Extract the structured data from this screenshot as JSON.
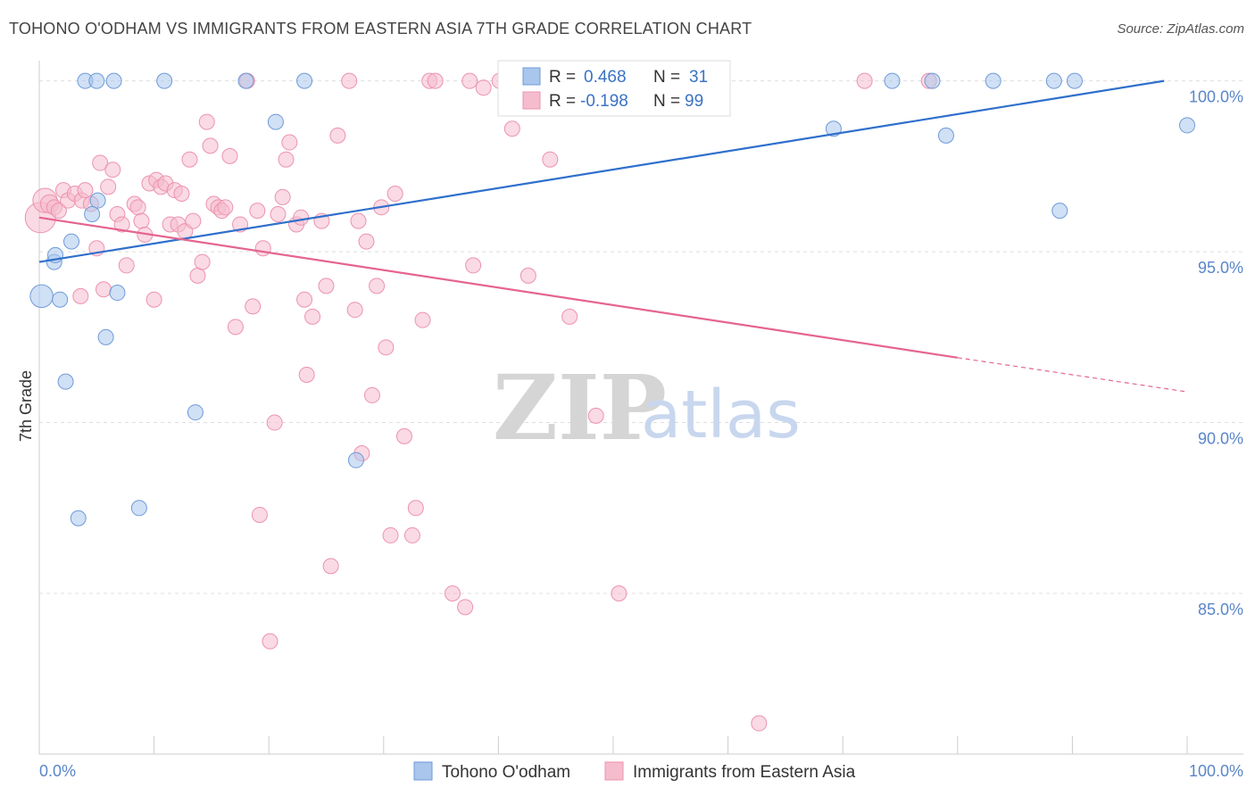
{
  "title": "TOHONO O'ODHAM VS IMMIGRANTS FROM EASTERN ASIA 7TH GRADE CORRELATION CHART",
  "source": "Source: ZipAtlas.com",
  "watermark": {
    "zip": "ZIP",
    "atlas": "atlas"
  },
  "colors": {
    "blue_fill": "#a9c6ec",
    "blue_stroke": "#6f9bd8",
    "blue_line": "#2f6fcc",
    "pink_fill": "#f5bccd",
    "pink_stroke": "#ec93af",
    "pink_line": "#e5648f",
    "grid": "#dddddd",
    "axis_text": "#5a86c9"
  },
  "legend": {
    "r_label": "R =",
    "n_label": "N =",
    "rows": [
      {
        "r": "0.468",
        "n": "31",
        "series": 0
      },
      {
        "r": "-0.198",
        "n": "99",
        "series": 1
      }
    ]
  },
  "chart_data": {
    "type": "scatter",
    "xlabel": "",
    "ylabel": "7th Grade",
    "xlim": [
      0,
      100
    ],
    "ylim": [
      80.3,
      100.8
    ],
    "x_tick_labels": [
      "0.0%",
      "100.0%"
    ],
    "y_ticks": [
      85,
      90,
      95,
      100
    ],
    "y_tick_labels": [
      "85.0%",
      "90.0%",
      "95.0%",
      "100.0%"
    ],
    "series": [
      {
        "name": "Tohono O'odham",
        "color": "#a9c6ec",
        "trend": {
          "x0": 0,
          "y0": 94.7,
          "x1": 98,
          "y1": 100.0,
          "dashed_to": null
        },
        "points": [
          [
            0.2,
            93.7,
            1.5
          ],
          [
            1.3,
            94.7,
            1
          ],
          [
            1.4,
            94.9,
            1
          ],
          [
            1.8,
            93.6,
            1
          ],
          [
            2.3,
            91.2,
            1
          ],
          [
            2.8,
            95.3,
            1
          ],
          [
            3.4,
            87.2,
            1
          ],
          [
            4.0,
            100.0,
            1
          ],
          [
            5.0,
            100.0,
            1
          ],
          [
            5.1,
            96.5,
            1
          ],
          [
            4.6,
            96.1,
            1
          ],
          [
            5.8,
            92.5,
            1
          ],
          [
            6.5,
            100.0,
            1
          ],
          [
            6.8,
            93.8,
            1
          ],
          [
            8.7,
            87.5,
            1
          ],
          [
            10.9,
            100.0,
            1
          ],
          [
            13.6,
            90.3,
            1
          ],
          [
            18.0,
            100.0,
            1
          ],
          [
            20.6,
            98.8,
            1
          ],
          [
            23.1,
            100.0,
            1
          ],
          [
            27.6,
            88.9,
            1
          ],
          [
            47.4,
            100.0,
            1
          ],
          [
            69.2,
            98.6,
            1
          ],
          [
            74.3,
            100.0,
            1
          ],
          [
            77.8,
            100.0,
            1
          ],
          [
            79.0,
            98.4,
            1
          ],
          [
            83.1,
            100.0,
            1
          ],
          [
            88.4,
            100.0,
            1
          ],
          [
            88.9,
            96.2,
            1
          ],
          [
            90.2,
            100.0,
            1
          ],
          [
            100.0,
            98.7,
            1
          ]
        ]
      },
      {
        "name": "Immigrants from Eastern Asia",
        "color": "#f5bccd",
        "trend": {
          "x0": 0,
          "y0": 96.0,
          "x1": 80,
          "y1": 91.9,
          "dashed_to": [
            100,
            90.9
          ]
        },
        "points": [
          [
            0.1,
            96.0,
            2
          ],
          [
            0.5,
            96.5,
            1.6
          ],
          [
            0.9,
            96.4,
            1.2
          ],
          [
            1.3,
            96.3,
            1
          ],
          [
            1.7,
            96.2,
            1
          ],
          [
            2.1,
            96.8,
            1
          ],
          [
            2.5,
            96.5,
            1
          ],
          [
            3.1,
            96.7,
            1
          ],
          [
            3.6,
            93.7,
            1
          ],
          [
            3.7,
            96.5,
            1
          ],
          [
            4.0,
            96.8,
            1
          ],
          [
            4.5,
            96.4,
            1
          ],
          [
            5.0,
            95.1,
            1
          ],
          [
            5.3,
            97.6,
            1
          ],
          [
            5.6,
            93.9,
            1
          ],
          [
            6.0,
            96.9,
            1
          ],
          [
            6.4,
            97.4,
            1
          ],
          [
            6.8,
            96.1,
            1
          ],
          [
            7.2,
            95.8,
            1
          ],
          [
            7.6,
            94.6,
            1
          ],
          [
            8.3,
            96.4,
            1
          ],
          [
            8.6,
            96.3,
            1
          ],
          [
            8.9,
            95.9,
            1
          ],
          [
            9.2,
            95.5,
            1
          ],
          [
            9.6,
            97.0,
            1
          ],
          [
            10.0,
            93.6,
            1
          ],
          [
            10.2,
            97.1,
            1
          ],
          [
            10.6,
            96.9,
            1
          ],
          [
            11.0,
            97.0,
            1
          ],
          [
            11.4,
            95.8,
            1
          ],
          [
            11.8,
            96.8,
            1
          ],
          [
            12.1,
            95.8,
            1
          ],
          [
            12.4,
            96.7,
            1
          ],
          [
            12.7,
            95.6,
            1
          ],
          [
            13.1,
            97.7,
            1
          ],
          [
            13.4,
            95.9,
            1
          ],
          [
            13.8,
            94.3,
            1
          ],
          [
            14.2,
            94.7,
            1
          ],
          [
            14.6,
            98.8,
            1
          ],
          [
            14.9,
            98.1,
            1
          ],
          [
            15.2,
            96.4,
            1
          ],
          [
            15.6,
            96.3,
            1
          ],
          [
            15.9,
            96.2,
            1
          ],
          [
            16.2,
            96.3,
            1
          ],
          [
            16.6,
            97.8,
            1
          ],
          [
            17.1,
            92.8,
            1
          ],
          [
            17.5,
            95.8,
            1
          ],
          [
            18.1,
            100.0,
            1
          ],
          [
            18.6,
            93.4,
            1
          ],
          [
            19.0,
            96.2,
            1
          ],
          [
            19.2,
            87.3,
            1
          ],
          [
            19.5,
            95.1,
            1
          ],
          [
            20.1,
            83.6,
            1
          ],
          [
            20.5,
            90.0,
            1
          ],
          [
            20.8,
            96.1,
            1
          ],
          [
            21.2,
            96.6,
            1
          ],
          [
            21.5,
            97.7,
            1
          ],
          [
            21.8,
            98.2,
            1
          ],
          [
            22.4,
            95.8,
            1
          ],
          [
            22.8,
            96.0,
            1
          ],
          [
            23.1,
            93.6,
            1
          ],
          [
            23.3,
            91.4,
            1
          ],
          [
            23.8,
            93.1,
            1
          ],
          [
            24.6,
            95.9,
            1
          ],
          [
            25.0,
            94.0,
            1
          ],
          [
            25.4,
            85.8,
            1
          ],
          [
            26.0,
            98.4,
            1
          ],
          [
            27.0,
            100.0,
            1
          ],
          [
            27.5,
            93.3,
            1
          ],
          [
            27.8,
            95.9,
            1
          ],
          [
            28.1,
            89.1,
            1
          ],
          [
            28.5,
            95.3,
            1
          ],
          [
            29.0,
            90.8,
            1
          ],
          [
            29.4,
            94.0,
            1
          ],
          [
            29.8,
            96.3,
            1
          ],
          [
            30.2,
            92.2,
            1
          ],
          [
            30.6,
            86.7,
            1
          ],
          [
            31.0,
            96.7,
            1
          ],
          [
            31.8,
            89.6,
            1
          ],
          [
            32.5,
            86.7,
            1
          ],
          [
            32.8,
            87.5,
            1
          ],
          [
            33.4,
            93.0,
            1
          ],
          [
            34.0,
            100.0,
            1
          ],
          [
            34.5,
            100.0,
            1
          ],
          [
            36.0,
            85.0,
            1
          ],
          [
            37.1,
            84.6,
            1
          ],
          [
            37.5,
            100.0,
            1
          ],
          [
            37.8,
            94.6,
            1
          ],
          [
            38.7,
            99.8,
            1
          ],
          [
            40.1,
            100.0,
            1
          ],
          [
            41.2,
            98.6,
            1
          ],
          [
            42.6,
            94.3,
            1
          ],
          [
            44.5,
            97.7,
            1
          ],
          [
            46.2,
            93.1,
            1
          ],
          [
            48.5,
            90.2,
            1
          ],
          [
            50.5,
            85.0,
            1
          ],
          [
            62.7,
            81.2,
            1
          ],
          [
            71.9,
            100.0,
            1
          ],
          [
            77.5,
            100.0,
            1
          ]
        ]
      }
    ]
  },
  "bottom_legend": [
    "Tohono O'odham",
    "Immigrants from Eastern Asia"
  ]
}
